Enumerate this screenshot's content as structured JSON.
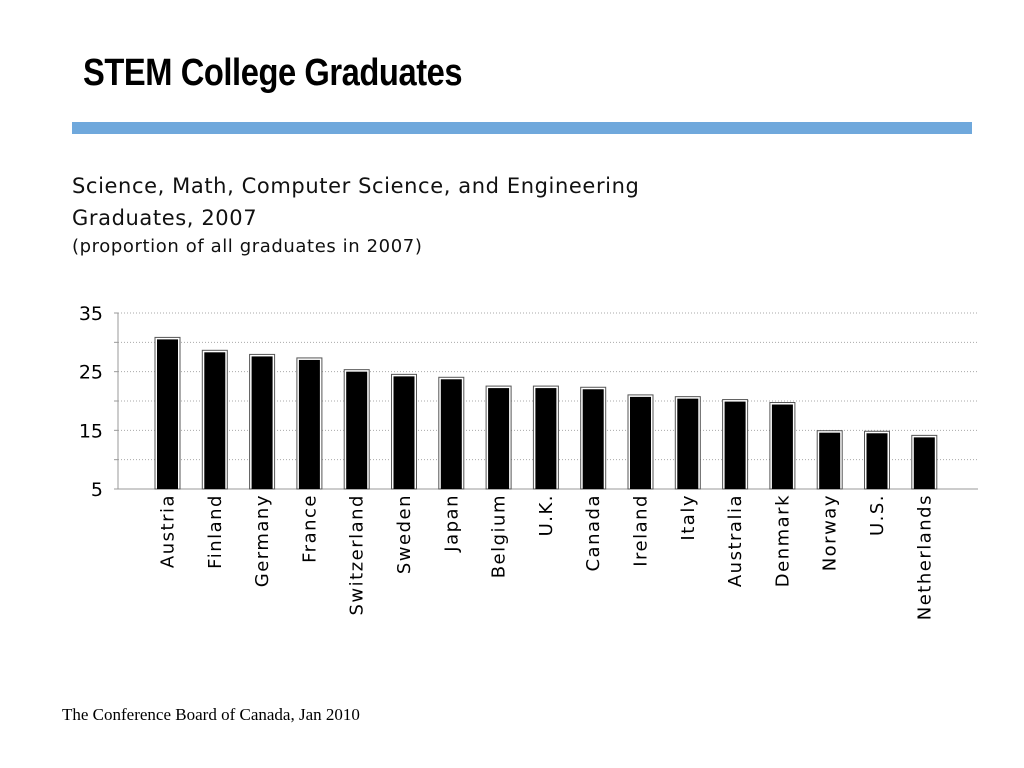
{
  "slide": {
    "title": "STEM College Graduates",
    "source": "The Conference Board of  Canada, Jan 2010"
  },
  "colors": {
    "accent_rule": "#6fa8dc",
    "bar_fill": "#000000",
    "bar_outline": "#555555",
    "grid": "#aaaaaa",
    "text": "#000000"
  },
  "chart_data": {
    "type": "bar",
    "title": "Science, Math, Computer Science, and Engineering Graduates, 2007",
    "title_lines": [
      "Science, Math, Computer Science, and Engineering",
      "Graduates, 2007"
    ],
    "subtitle": "(proportion of all graduates in 2007)",
    "xlabel": "",
    "ylabel": "",
    "categories": [
      "Austria",
      "Finland",
      "Germany",
      "France",
      "Switzerland",
      "Sweden",
      "Japan",
      "Belgium",
      "U.K.",
      "Canada",
      "Ireland",
      "Italy",
      "Australia",
      "Denmark",
      "Norway",
      "U.S.",
      "Netherlands"
    ],
    "values": [
      30.5,
      28.3,
      27.6,
      27.0,
      25.0,
      24.2,
      23.7,
      22.2,
      22.2,
      22.0,
      20.7,
      20.4,
      19.9,
      19.4,
      14.6,
      14.5,
      13.8
    ],
    "ylim": [
      5,
      35
    ],
    "yticks": [
      5,
      15,
      25,
      35
    ],
    "ytick_labels": [
      "5",
      "15",
      "25",
      "35"
    ],
    "grid": true,
    "legend": "none"
  }
}
